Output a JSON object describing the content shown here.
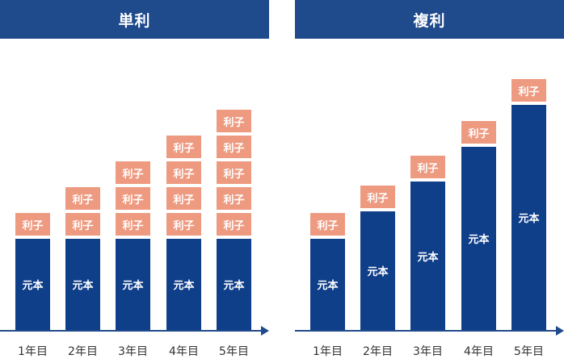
{
  "colors": {
    "header": "#1f4a8c",
    "principal": "#103f8a",
    "interest": "#ee9a80",
    "axis": "#1f4a8c"
  },
  "panels": [
    {
      "title": "単利",
      "principal_label": "元本",
      "interest_label": "利子",
      "years": [
        {
          "label": "1年目",
          "interest_blocks": 1
        },
        {
          "label": "2年目",
          "interest_blocks": 2
        },
        {
          "label": "3年目",
          "interest_blocks": 3
        },
        {
          "label": "4年目",
          "interest_blocks": 4
        },
        {
          "label": "5年目",
          "interest_blocks": 5
        }
      ]
    },
    {
      "title": "複利",
      "principal_label": "元本",
      "interest_label": "利子",
      "years": [
        {
          "label": "1年目",
          "interest_blocks": 1
        },
        {
          "label": "2年目",
          "interest_blocks": 1
        },
        {
          "label": "3年目",
          "interest_blocks": 1
        },
        {
          "label": "4年目",
          "interest_blocks": 1
        },
        {
          "label": "5年目",
          "interest_blocks": 1
        }
      ]
    }
  ]
}
